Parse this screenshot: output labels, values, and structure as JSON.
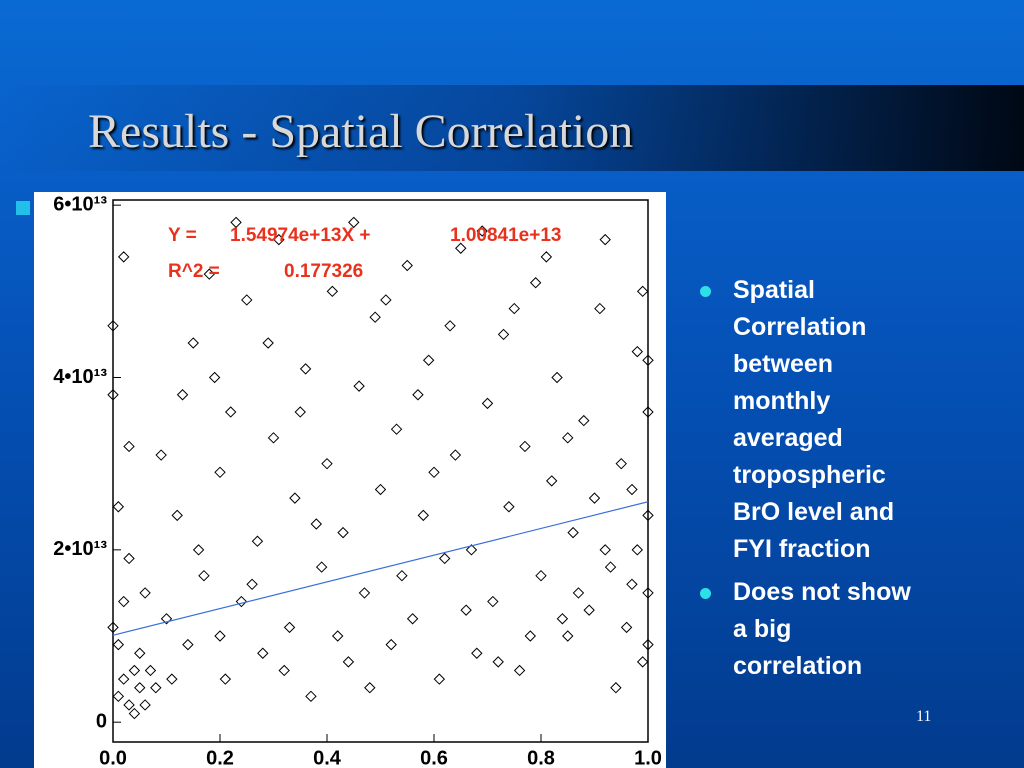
{
  "slide": {
    "title": "Results - Spatial Correlation",
    "bullets": [
      "Spatial Correlation between monthly averaged tropospheric BrO level and FYI fraction",
      "Does not show a big correlation"
    ],
    "page_number": "11"
  },
  "chart_data": {
    "type": "scatter",
    "annotations": [
      "Y =",
      "1.54974e+13X +",
      "1.00841e+13",
      "R^2 =",
      "0.177326"
    ],
    "x": [
      0.01,
      0.02,
      0.0,
      0.03,
      0.05,
      0.04,
      0.01,
      0.0,
      0.02,
      0.0,
      0.06,
      0.08,
      0.03,
      0.07,
      0.1,
      0.12,
      0.09,
      0.14,
      0.15,
      0.17,
      0.18,
      0.2,
      0.21,
      0.22,
      0.24,
      0.25,
      0.27,
      0.28,
      0.3,
      0.31,
      0.33,
      0.34,
      0.36,
      0.37,
      0.39,
      0.4,
      0.41,
      0.43,
      0.44,
      0.46,
      0.47,
      0.49,
      0.5,
      0.52,
      0.53,
      0.55,
      0.56,
      0.58,
      0.59,
      0.61,
      0.62,
      0.64,
      0.65,
      0.67,
      0.68,
      0.7,
      0.71,
      0.73,
      0.74,
      0.76,
      0.77,
      0.79,
      0.8,
      0.82,
      0.83,
      0.85,
      0.86,
      0.88,
      0.89,
      0.91,
      0.92,
      0.94,
      0.95,
      0.97,
      0.98,
      1.0,
      1.0,
      0.99,
      1.0,
      0.96,
      0.93,
      0.87,
      0.84,
      0.9,
      0.78,
      0.72,
      0.66,
      0.6,
      0.54,
      0.48,
      0.42,
      0.38,
      0.32,
      0.26,
      0.2,
      0.16,
      0.11,
      0.13,
      0.19,
      0.23,
      0.29,
      0.35,
      0.45,
      0.51,
      0.57,
      0.63,
      0.69,
      0.75,
      0.81,
      0.85,
      0.92,
      0.97,
      0.02,
      0.04,
      0.06,
      0.01,
      0.03,
      0.05,
      1.0,
      0.99,
      0.98,
      1.0
    ],
    "values": [
      3000000000000.0,
      5000000000000.0,
      11000000000000.0,
      2000000000000.0,
      8000000000000.0,
      1000000000000.0,
      25000000000000.0,
      38000000000000.0,
      54000000000000.0,
      46000000000000.0,
      15000000000000.0,
      4000000000000.0,
      19000000000000.0,
      6000000000000.0,
      12000000000000.0,
      24000000000000.0,
      31000000000000.0,
      9000000000000.0,
      44000000000000.0,
      17000000000000.0,
      52000000000000.0,
      29000000000000.0,
      5000000000000.0,
      36000000000000.0,
      14000000000000.0,
      49000000000000.0,
      21000000000000.0,
      8000000000000.0,
      33000000000000.0,
      56000000000000.0,
      11000000000000.0,
      26000000000000.0,
      41000000000000.0,
      3000000000000.0,
      18000000000000.0,
      30000000000000.0,
      50000000000000.0,
      22000000000000.0,
      7000000000000.0,
      39000000000000.0,
      15000000000000.0,
      47000000000000.0,
      27000000000000.0,
      9000000000000.0,
      34000000000000.0,
      53000000000000.0,
      12000000000000.0,
      24000000000000.0,
      42000000000000.0,
      5000000000000.0,
      19000000000000.0,
      31000000000000.0,
      55000000000000.0,
      20000000000000.0,
      8000000000000.0,
      37000000000000.0,
      14000000000000.0,
      45000000000000.0,
      25000000000000.0,
      6000000000000.0,
      32000000000000.0,
      51000000000000.0,
      17000000000000.0,
      28000000000000.0,
      40000000000000.0,
      10000000000000.0,
      22000000000000.0,
      35000000000000.0,
      13000000000000.0,
      48000000000000.0,
      20000000000000.0,
      4000000000000.0,
      30000000000000.0,
      16000000000000.0,
      43000000000000.0,
      24000000000000.0,
      9000000000000.0,
      50000000000000.0,
      36000000000000.0,
      11000000000000.0,
      18000000000000.0,
      15000000000000.0,
      12000000000000.0,
      26000000000000.0,
      10000000000000.0,
      7000000000000.0,
      13000000000000.0,
      29000000000000.0,
      17000000000000.0,
      4000000000000.0,
      10000000000000.0,
      23000000000000.0,
      6000000000000.0,
      16000000000000.0,
      10000000000000.0,
      20000000000000.0,
      5000000000000.0,
      38000000000000.0,
      40000000000000.0,
      58000000000000.0,
      44000000000000.0,
      36000000000000.0,
      58000000000000.0,
      49000000000000.0,
      38000000000000.0,
      46000000000000.0,
      57000000000000.0,
      48000000000000.0,
      54000000000000.0,
      33000000000000.0,
      56000000000000.0,
      27000000000000.0,
      14000000000000.0,
      6000000000000.0,
      2000000000000.0,
      9000000000000.0,
      32000000000000.0,
      4000000000000.0,
      15000000000000.0,
      7000000000000.0,
      20000000000000.0,
      42000000000000.0
    ],
    "trend_line": {
      "color": "#3a6fd8",
      "x": [
        0,
        1
      ],
      "values": [
        10084100000000.0,
        25581500000000.0
      ]
    },
    "marker_color": "#000000",
    "xlim": [
      0,
      1
    ],
    "ylim": [
      -2300000000000.0,
      60600000000000.0
    ],
    "xticks": [
      {
        "value": 0,
        "label": "0.0"
      },
      {
        "value": 0.2,
        "label": "0.2"
      },
      {
        "value": 0.4,
        "label": "0.4"
      },
      {
        "value": 0.6,
        "label": "0.6"
      },
      {
        "value": 0.8,
        "label": "0.8"
      },
      {
        "value": 1,
        "label": "1.0"
      }
    ],
    "yticks": [
      0,
      {
        "value": 20000000000000.0,
        "label": "2•10¹³"
      },
      {
        "value": 40000000000000.0,
        "label": "4•10¹³"
      },
      {
        "value": 60000000000000.0,
        "label": "6•10¹³"
      }
    ]
  }
}
